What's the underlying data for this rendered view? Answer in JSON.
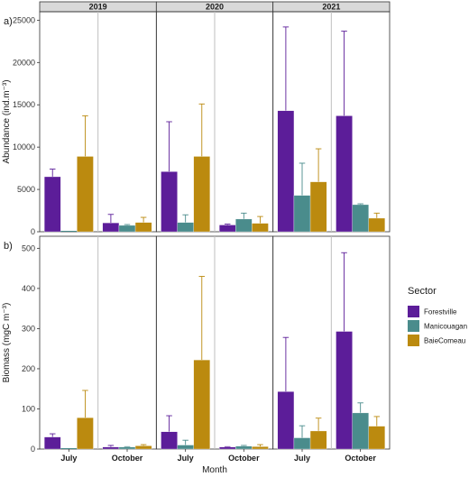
{
  "chart_data": {
    "type": "bar",
    "xlabel": "Month",
    "years": [
      "2019",
      "2020",
      "2021"
    ],
    "months": [
      "July",
      "October"
    ],
    "legend": {
      "title": "Sector",
      "placement": "right",
      "sectors": [
        {
          "name": "Forestville",
          "color": "#5c1d99"
        },
        {
          "name": "Manicouagan",
          "color": "#4a8c8c"
        },
        {
          "name": "BaieComeau",
          "color": "#bb8a0f"
        }
      ]
    },
    "panels": [
      {
        "tag": "a)",
        "ylabel": "Abundance (ind.m⁻³)",
        "ylim": [
          0,
          26000
        ],
        "yticks": [
          0,
          5000,
          10000,
          15000,
          20000,
          25000
        ],
        "values": {
          "2019": {
            "July": [
              6500,
              0,
              8900
            ],
            "October": [
              1050,
              750,
              1100
            ]
          },
          "2020": {
            "July": [
              7100,
              1100,
              8900
            ],
            "October": [
              800,
              1500,
              1000
            ]
          },
          "2021": {
            "July": [
              14300,
              4300,
              5900
            ],
            "October": [
              13700,
              3200,
              1600
            ]
          }
        },
        "errors": {
          "2019": {
            "July": [
              900,
              0,
              4800
            ],
            "October": [
              1000,
              100,
              600
            ]
          },
          "2020": {
            "July": [
              5900,
              900,
              6200
            ],
            "October": [
              100,
              700,
              800
            ]
          },
          "2021": {
            "July": [
              9900,
              3800,
              3900
            ],
            "October": [
              10000,
              100,
              600
            ]
          }
        }
      },
      {
        "tag": "b)",
        "ylabel": "Biomass (mgC m⁻³)",
        "ylim": [
          0,
          530
        ],
        "yticks": [
          0,
          100,
          200,
          300,
          400,
          500
        ],
        "values": {
          "2019": {
            "July": [
              30,
              0,
              78
            ],
            "October": [
              5,
              5,
              8
            ]
          },
          "2020": {
            "July": [
              43,
              10,
              222
            ],
            "October": [
              5,
              7,
              6
            ]
          },
          "2021": {
            "July": [
              143,
              28,
              45
            ],
            "October": [
              293,
              90,
              57
            ]
          }
        },
        "errors": {
          "2019": {
            "July": [
              8,
              0,
              68
            ],
            "October": [
              4,
              1,
              3
            ]
          },
          "2020": {
            "July": [
              40,
              12,
              208
            ],
            "October": [
              1,
              2,
              5
            ]
          },
          "2021": {
            "July": [
              135,
              30,
              32
            ],
            "October": [
              196,
              25,
              24
            ]
          }
        }
      }
    ]
  }
}
